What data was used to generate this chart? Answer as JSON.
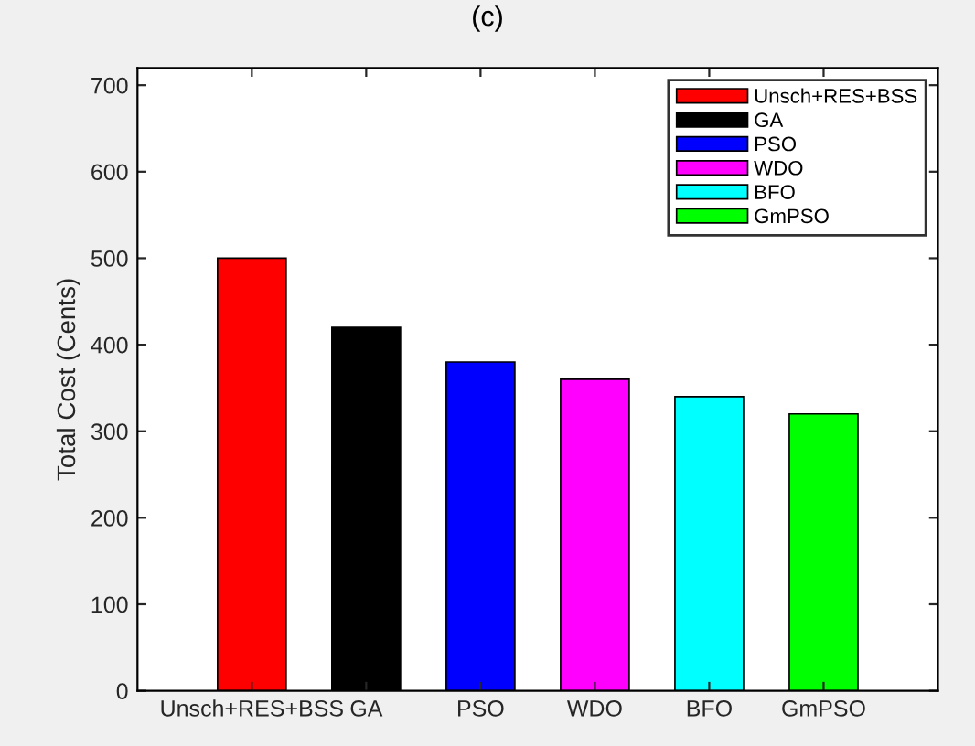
{
  "chart_data": {
    "type": "bar",
    "title": "(c)",
    "ylabel": "Total Cost (Cents)",
    "categories": [
      "Unsch+RES+BSS",
      "GA",
      "PSO",
      "WDO",
      "BFO",
      "GmPSO"
    ],
    "series": [
      {
        "name": "Unsch+RES+BSS",
        "color": "#ff0000",
        "values": [
          500,
          null,
          null,
          null,
          null,
          null
        ]
      },
      {
        "name": "GA",
        "color": "#000000",
        "values": [
          null,
          420,
          null,
          null,
          null,
          null
        ]
      },
      {
        "name": "PSO",
        "color": "#0000ff",
        "values": [
          null,
          null,
          380,
          null,
          null,
          null
        ]
      },
      {
        "name": "WDO",
        "color": "#ff00ff",
        "values": [
          null,
          null,
          null,
          360,
          null,
          null
        ]
      },
      {
        "name": "BFO",
        "color": "#00ffff",
        "values": [
          null,
          null,
          null,
          null,
          340,
          null
        ]
      },
      {
        "name": "GmPSO",
        "color": "#00ff00",
        "values": [
          null,
          null,
          null,
          null,
          null,
          320
        ]
      }
    ],
    "ylim": [
      0,
      720
    ],
    "yticks": [
      0,
      100,
      200,
      300,
      400,
      500,
      600,
      700
    ],
    "grid": false,
    "legend": "top right"
  }
}
